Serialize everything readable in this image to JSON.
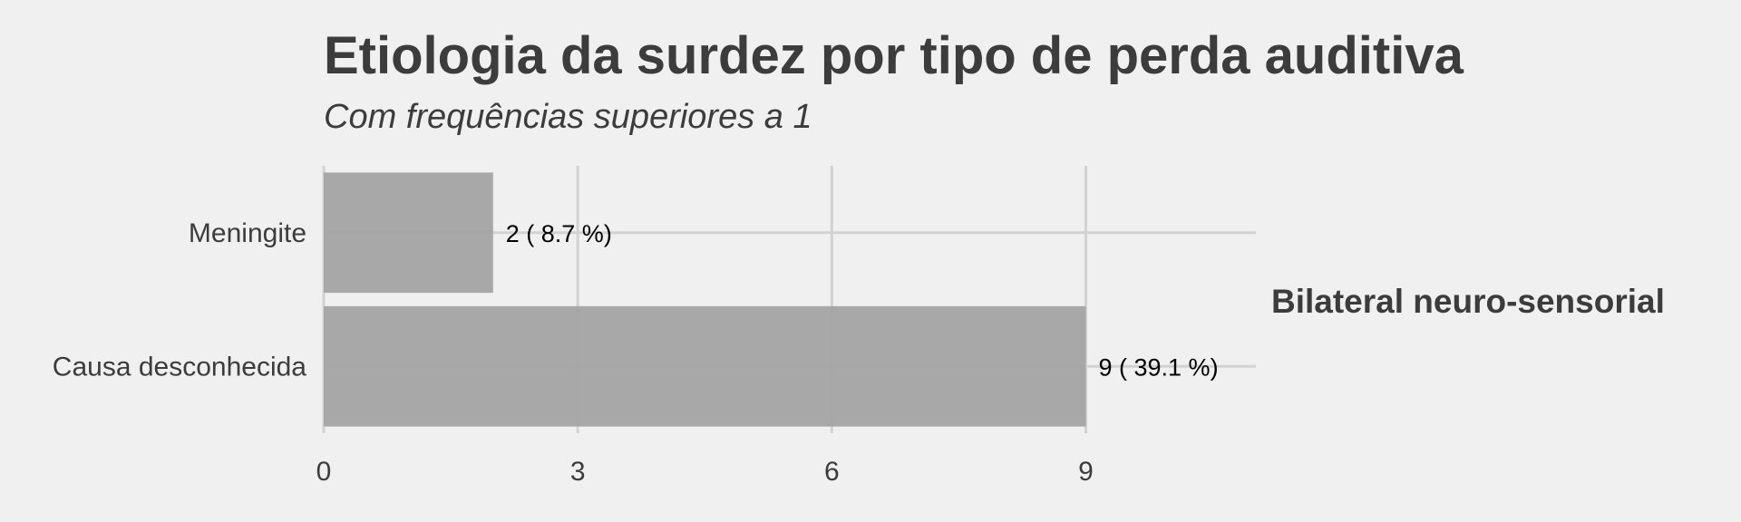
{
  "chart_data": {
    "type": "bar",
    "orientation": "horizontal",
    "title": "Etiologia da surdez por tipo de perda auditiva",
    "subtitle": "Com frequências superiores a 1",
    "facet": "Bilateral neuro-sensorial",
    "categories": [
      "Meningite",
      "Causa desconhecida"
    ],
    "values": [
      2,
      9
    ],
    "data_labels": [
      "2 ( 8.7 %)",
      "9 ( 39.1 %)"
    ],
    "xticks": [
      0,
      3,
      6,
      9
    ],
    "xlim": [
      0,
      11
    ],
    "grid": true,
    "colors": {
      "bar": "#a3a3a3",
      "grid": "#d2d2d2",
      "background": "#f0f0f0",
      "text": "#3c3c3c"
    }
  }
}
